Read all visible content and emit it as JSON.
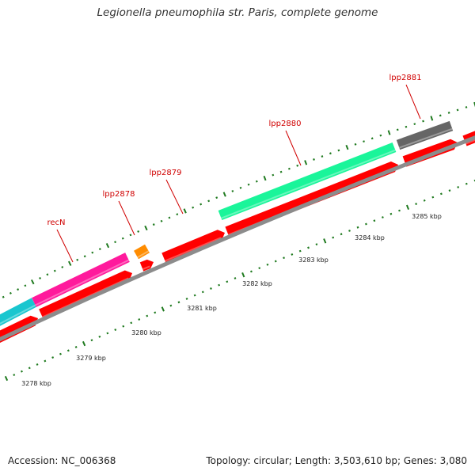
{
  "title": "Legionella pneumophila str. Paris, complete genome",
  "accession": "Accession: NC_006368",
  "topology": "Topology: circular; Length: 3,503,610 bp; Genes: 3,080",
  "colors": {
    "backbone": "#8c8c8c",
    "cds": "#ff0000",
    "tick": "#1f7a1f"
  },
  "kbp_labels": [
    "3278 kbp",
    "3279 kbp",
    "3280 kbp",
    "3281 kbp",
    "3282 kbp",
    "3283 kbp",
    "3284 kbp",
    "3285 kbp"
  ],
  "gene_labels": [
    "recN",
    "lpp2878",
    "lpp2879",
    "lpp2880",
    "lpp2881"
  ],
  "feature_colors": {
    "cyan_gene": "#19c6cf",
    "recN": "#ff1a9c",
    "lpp2878": "#ff8c00",
    "lpp2880": "#1af59a",
    "lpp2881": "#666666"
  }
}
